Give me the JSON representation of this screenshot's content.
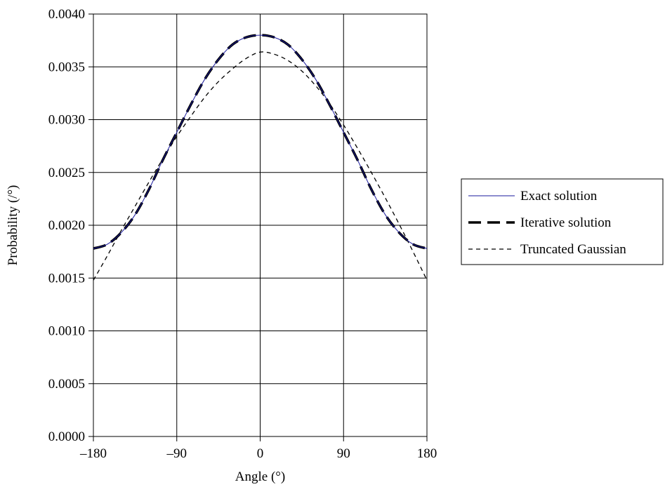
{
  "chart_data": {
    "type": "line",
    "title": "",
    "xlabel": "Angle (°)",
    "ylabel": "Probability (/°)",
    "xlim": [
      -180,
      180
    ],
    "ylim": [
      0,
      0.004
    ],
    "x_ticks": [
      -180,
      -90,
      0,
      90,
      180
    ],
    "x_tick_labels": [
      "–180",
      "–90",
      "0",
      "90",
      "180"
    ],
    "y_ticks": [
      0,
      0.0005,
      0.001,
      0.0015,
      0.002,
      0.0025,
      0.003,
      0.0035,
      0.004
    ],
    "y_tick_labels": [
      "0.0000",
      "0.0005",
      "0.0010",
      "0.0015",
      "0.0020",
      "0.0025",
      "0.0030",
      "0.0035",
      "0.0040"
    ],
    "grid": true,
    "legend_position": "right",
    "x": [
      -180,
      -165,
      -150,
      -135,
      -120,
      -105,
      -90,
      -75,
      -60,
      -45,
      -30,
      -15,
      0,
      15,
      30,
      45,
      60,
      75,
      90,
      105,
      120,
      135,
      150,
      165,
      180
    ],
    "series": [
      {
        "name": "Exact solution",
        "color": "#1a1a9c",
        "style": "solid",
        "values": [
          0.00178,
          0.00182,
          0.00193,
          0.0021,
          0.00234,
          0.00262,
          0.00288,
          0.00314,
          0.00338,
          0.00357,
          0.00371,
          0.00378,
          0.0038,
          0.00378,
          0.00371,
          0.00357,
          0.00338,
          0.00314,
          0.00288,
          0.00262,
          0.00234,
          0.0021,
          0.00193,
          0.00182,
          0.00178
        ]
      },
      {
        "name": "Iterative solution",
        "color": "#000000",
        "style": "long-dash",
        "values": [
          0.00178,
          0.00182,
          0.00193,
          0.0021,
          0.00234,
          0.00262,
          0.00288,
          0.00314,
          0.00338,
          0.00357,
          0.00371,
          0.00378,
          0.0038,
          0.00378,
          0.00371,
          0.00357,
          0.00338,
          0.00314,
          0.00288,
          0.00262,
          0.00234,
          0.0021,
          0.00193,
          0.00182,
          0.00178
        ]
      },
      {
        "name": "Truncated Gaussian",
        "color": "#000000",
        "style": "short-dash",
        "values": [
          0.00148,
          0.00171,
          0.00195,
          0.00218,
          0.00241,
          0.00263,
          0.00284,
          0.00303,
          0.00321,
          0.00336,
          0.00348,
          0.00358,
          0.00364,
          0.00362,
          0.00356,
          0.00346,
          0.00332,
          0.00315,
          0.00295,
          0.00273,
          0.0025,
          0.00226,
          0.00201,
          0.00175,
          0.00148
        ]
      }
    ]
  }
}
